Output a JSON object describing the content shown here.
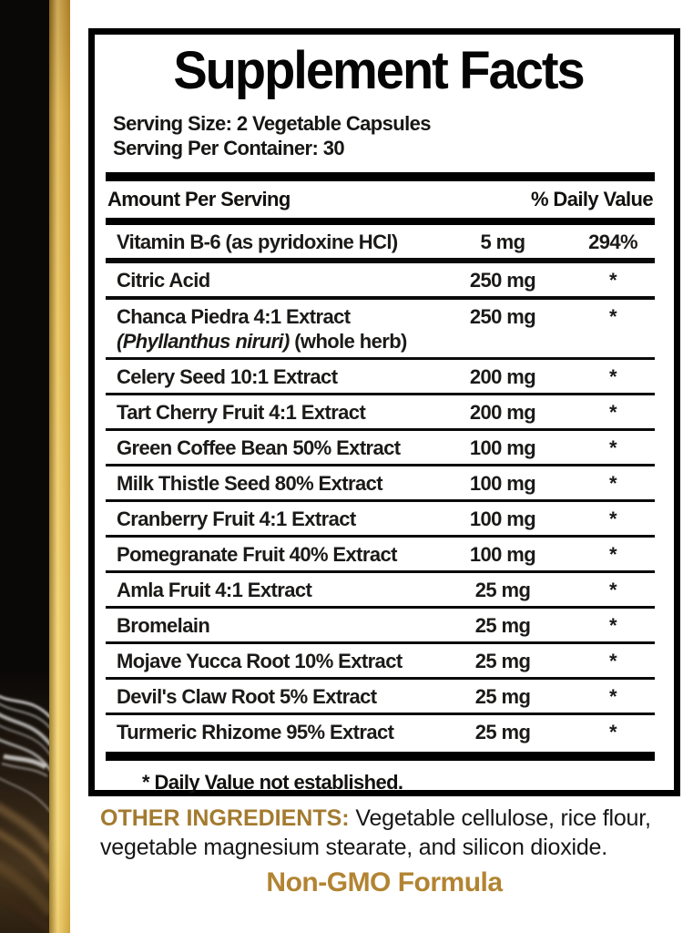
{
  "panel": {
    "title": "Supplement Facts",
    "serving_size": "Serving Size: 2 Vegetable Capsules",
    "servings_per_container": "Serving Per Container: 30",
    "header": {
      "amount": "Amount Per Serving",
      "daily_value": "% Daily Value"
    },
    "rows": [
      {
        "name": "Vitamin B-6 (as pyridoxine HCl)",
        "amount": "5 mg",
        "dv": "294%",
        "sep": "heavy"
      },
      {
        "name": "Citric Acid",
        "amount": "250 mg",
        "dv": "*",
        "sep": "med"
      },
      {
        "name": "Chanca Piedra 4:1 Extract",
        "line2_italic": "(Phyllanthus niruri)",
        "line2_rest": " (whole herb)",
        "amount": "250 mg",
        "dv": "*"
      },
      {
        "name": "Celery Seed 10:1 Extract",
        "amount": "200 mg",
        "dv": "*"
      },
      {
        "name": "Tart Cherry Fruit 4:1 Extract",
        "amount": "200 mg",
        "dv": "*"
      },
      {
        "name": "Green Coffee Bean 50% Extract",
        "amount": "100 mg",
        "dv": "*"
      },
      {
        "name": "Milk Thistle Seed 80% Extract",
        "amount": "100 mg",
        "dv": "*"
      },
      {
        "name": "Cranberry Fruit 4:1 Extract",
        "amount": "100 mg",
        "dv": "*"
      },
      {
        "name": "Pomegranate Fruit 40% Extract",
        "amount": "100 mg",
        "dv": "*"
      },
      {
        "name": "Amla Fruit 4:1 Extract",
        "amount": "25 mg",
        "dv": "*"
      },
      {
        "name": "Bromelain",
        "amount": "25 mg",
        "dv": "*"
      },
      {
        "name": "Mojave Yucca Root 10% Extract",
        "amount": "25 mg",
        "dv": "*"
      },
      {
        "name": "Devil's Claw Root 5% Extract",
        "amount": "25 mg",
        "dv": "*"
      },
      {
        "name": "Turmeric Rhizome 95% Extract",
        "amount": "25 mg",
        "dv": "*"
      }
    ],
    "footnote": "* Daily Value not established."
  },
  "bottom": {
    "other_ingredients_label": "OTHER INGREDIENTS:",
    "other_ingredients_text": " Vegetable cellulose, rice flour, vegetable magnesium stearate, and silicon dioxide.",
    "non_gmo": "Non-GMO Formula"
  },
  "colors": {
    "gold_text": "#a37a2f",
    "gold_nongmo": "#b28432",
    "gold_strip": "#e9bd4a",
    "package_black": "#0a0807"
  }
}
